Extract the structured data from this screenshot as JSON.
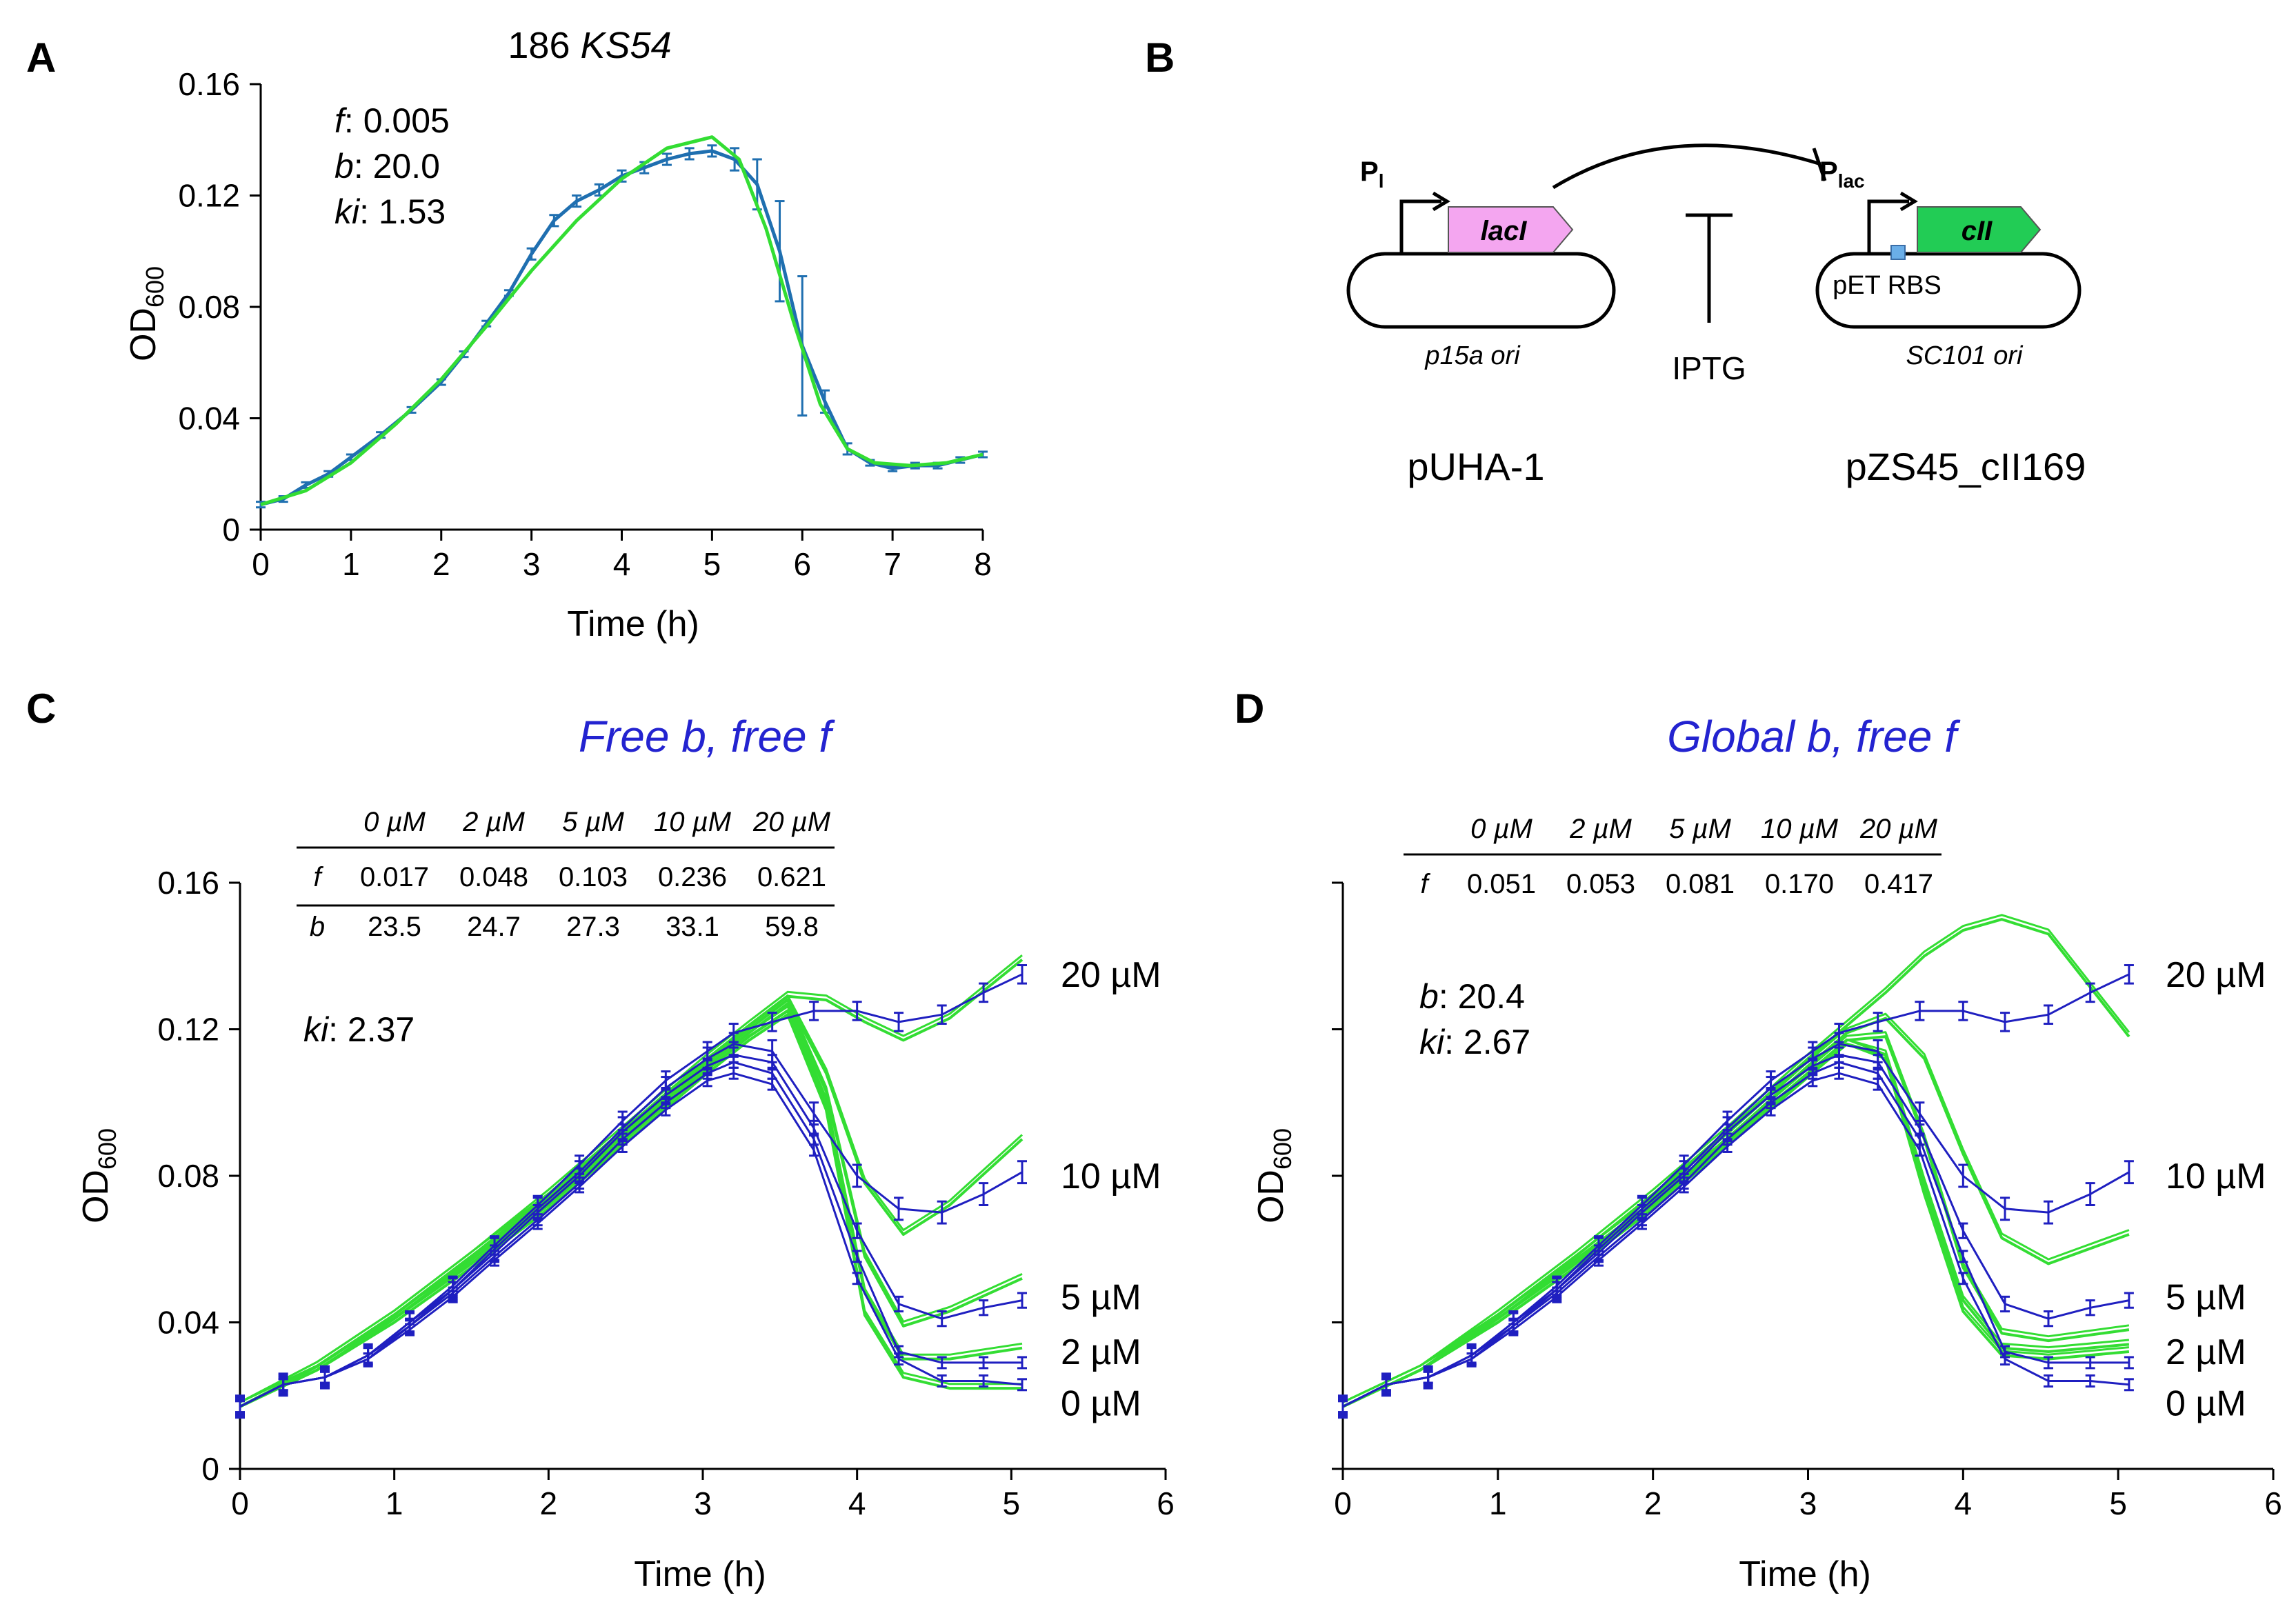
{
  "panels": {
    "A": "A",
    "B": "B",
    "C": "C",
    "D": "D"
  },
  "chart_data": [
    {
      "id": "A",
      "type": "line",
      "title_prefix": "186 ",
      "title_italic": "KS54",
      "xlabel": "Time (h)",
      "ylabel": "OD",
      "ylabel_sub": "600",
      "xlim": [
        0,
        8
      ],
      "ylim": [
        0,
        0.16
      ],
      "xticks": [
        0,
        1,
        2,
        3,
        4,
        5,
        6,
        7,
        8
      ],
      "yticks": [
        0,
        0.04,
        0.08,
        0.12,
        0.16
      ],
      "ytick_labels": [
        "0",
        "0.04",
        "0.08",
        "0.12",
        "0.16"
      ],
      "annotations": [
        {
          "key": "f",
          "sep": ": ",
          "value": "0.005"
        },
        {
          "key": "b",
          "sep": ": ",
          "value": "20.0"
        },
        {
          "key": "ki",
          "sep": ": ",
          "value": "1.53"
        }
      ],
      "series": [
        {
          "name": "data",
          "color": "#1f6fb0",
          "x": [
            0,
            0.25,
            0.5,
            0.75,
            1.0,
            1.33,
            1.67,
            2.0,
            2.25,
            2.5,
            2.75,
            3.0,
            3.25,
            3.5,
            3.75,
            4.0,
            4.25,
            4.5,
            4.75,
            5.0,
            5.25,
            5.5,
            5.75,
            6.0,
            6.25,
            6.5,
            6.75,
            7.0,
            7.25,
            7.5,
            7.75,
            8.0
          ],
          "y": [
            0.009,
            0.011,
            0.016,
            0.02,
            0.026,
            0.034,
            0.043,
            0.053,
            0.063,
            0.074,
            0.085,
            0.099,
            0.111,
            0.118,
            0.122,
            0.127,
            0.13,
            0.133,
            0.135,
            0.136,
            0.133,
            0.124,
            0.1,
            0.066,
            0.046,
            0.029,
            0.024,
            0.022,
            0.023,
            0.023,
            0.025,
            0.027
          ],
          "err": [
            0.001,
            0.001,
            0.001,
            0.001,
            0.001,
            0.001,
            0.001,
            0.001,
            0.001,
            0.001,
            0.001,
            0.002,
            0.002,
            0.002,
            0.002,
            0.002,
            0.002,
            0.002,
            0.002,
            0.002,
            0.004,
            0.009,
            0.018,
            0.025,
            0.004,
            0.002,
            0.001,
            0.001,
            0.001,
            0.001,
            0.001,
            0.001
          ]
        },
        {
          "name": "model",
          "color": "#33dd33",
          "x": [
            0,
            0.5,
            1,
            1.5,
            2,
            2.5,
            3,
            3.5,
            4,
            4.5,
            5,
            5.3,
            5.6,
            5.9,
            6.2,
            6.5,
            6.8,
            7.2,
            7.6,
            8
          ],
          "y": [
            0.009,
            0.014,
            0.024,
            0.038,
            0.054,
            0.073,
            0.093,
            0.111,
            0.126,
            0.137,
            0.141,
            0.133,
            0.108,
            0.075,
            0.045,
            0.029,
            0.024,
            0.023,
            0.024,
            0.027
          ]
        }
      ]
    },
    {
      "id": "C",
      "type": "line",
      "title": "Free b, free f",
      "title_color": "#2323d0",
      "xlabel": "Time (h)",
      "ylabel": "OD",
      "ylabel_sub": "600",
      "xlim": [
        0,
        6
      ],
      "ylim": [
        0,
        0.16
      ],
      "xticks": [
        0,
        1,
        2,
        3,
        4,
        5,
        6
      ],
      "yticks": [
        0,
        0.04,
        0.08,
        0.12,
        0.16
      ],
      "ytick_labels": [
        "0",
        "0.04",
        "0.08",
        "0.12",
        "0.16"
      ],
      "param_table": {
        "headers": [
          "0 µM",
          "2 µM",
          "5 µM",
          "10 µM",
          "20 µM"
        ],
        "rows": [
          {
            "label": "f",
            "values": [
              "0.017",
              "0.048",
              "0.103",
              "0.236",
              "0.621"
            ]
          },
          {
            "label": "b",
            "values": [
              "23.5",
              "24.7",
              "27.3",
              "33.1",
              "59.8"
            ]
          }
        ]
      },
      "annotations": [
        {
          "key": "ki",
          "sep": ": ",
          "value": "2.37"
        }
      ],
      "series_labels": [
        "20 µM",
        "10 µM",
        "5 µM",
        "2 µM",
        "0 µM"
      ],
      "x": [
        0,
        0.28,
        0.55,
        0.83,
        1.1,
        1.38,
        1.65,
        1.93,
        2.2,
        2.48,
        2.76,
        3.03,
        3.2,
        3.45,
        3.72,
        4.0,
        4.27,
        4.55,
        4.82,
        5.07
      ],
      "series": [
        {
          "name": "0 µM",
          "values": [
            0.017,
            0.023,
            0.025,
            0.03,
            0.038,
            0.047,
            0.057,
            0.067,
            0.077,
            0.088,
            0.098,
            0.106,
            0.108,
            0.105,
            0.087,
            0.052,
            0.03,
            0.024,
            0.024,
            0.023
          ],
          "err": 0.0015
        },
        {
          "name": "2 µM",
          "values": [
            0.017,
            0.023,
            0.025,
            0.03,
            0.039,
            0.048,
            0.058,
            0.068,
            0.078,
            0.09,
            0.1,
            0.108,
            0.111,
            0.108,
            0.09,
            0.058,
            0.032,
            0.029,
            0.029,
            0.029
          ],
          "err": 0.0015
        },
        {
          "name": "5 µM",
          "values": [
            0.017,
            0.023,
            0.025,
            0.031,
            0.039,
            0.049,
            0.059,
            0.07,
            0.08,
            0.092,
            0.102,
            0.11,
            0.113,
            0.111,
            0.093,
            0.065,
            0.045,
            0.041,
            0.044,
            0.046
          ],
          "err": 0.002
        },
        {
          "name": "10 µM",
          "values": [
            0.017,
            0.023,
            0.025,
            0.031,
            0.04,
            0.049,
            0.06,
            0.071,
            0.081,
            0.093,
            0.104,
            0.112,
            0.116,
            0.114,
            0.097,
            0.08,
            0.071,
            0.07,
            0.075,
            0.081
          ],
          "err": 0.003
        },
        {
          "name": "20 µM",
          "values": [
            0.017,
            0.023,
            0.025,
            0.031,
            0.04,
            0.05,
            0.061,
            0.072,
            0.083,
            0.095,
            0.106,
            0.114,
            0.119,
            0.122,
            0.125,
            0.125,
            0.122,
            0.124,
            0.13,
            0.135
          ],
          "err": 0.0025
        }
      ],
      "model_series": [
        {
          "name": "0 µM",
          "x": [
            0,
            0.5,
            1,
            1.5,
            2,
            2.5,
            3,
            3.3,
            3.55,
            3.8,
            4.05,
            4.3,
            4.6,
            5.07
          ],
          "values": [
            0.017,
            0.027,
            0.04,
            0.055,
            0.071,
            0.089,
            0.107,
            0.117,
            0.124,
            0.098,
            0.042,
            0.025,
            0.022,
            0.022
          ]
        },
        {
          "name": "2 µM",
          "x": [
            0,
            0.5,
            1,
            1.5,
            2,
            2.5,
            3,
            3.3,
            3.55,
            3.8,
            4.05,
            4.3,
            4.6,
            5.07
          ],
          "values": [
            0.017,
            0.027,
            0.041,
            0.056,
            0.072,
            0.09,
            0.108,
            0.118,
            0.125,
            0.1,
            0.048,
            0.03,
            0.03,
            0.033
          ]
        },
        {
          "name": "5 µM",
          "x": [
            0,
            0.5,
            1,
            1.5,
            2,
            2.5,
            3,
            3.3,
            3.55,
            3.8,
            4.05,
            4.3,
            4.6,
            5.07
          ],
          "values": [
            0.017,
            0.027,
            0.041,
            0.057,
            0.073,
            0.091,
            0.109,
            0.119,
            0.127,
            0.103,
            0.058,
            0.039,
            0.043,
            0.052
          ]
        },
        {
          "name": "10 µM",
          "x": [
            0,
            0.5,
            1,
            1.5,
            2,
            2.5,
            3,
            3.3,
            3.55,
            3.8,
            4.05,
            4.3,
            4.6,
            5.07
          ],
          "values": [
            0.017,
            0.028,
            0.042,
            0.058,
            0.074,
            0.092,
            0.11,
            0.12,
            0.128,
            0.108,
            0.078,
            0.064,
            0.072,
            0.09
          ]
        },
        {
          "name": "20 µM",
          "x": [
            0,
            0.5,
            1,
            1.5,
            2,
            2.5,
            3,
            3.3,
            3.55,
            3.8,
            4.05,
            4.3,
            4.6,
            5.07
          ],
          "values": [
            0.017,
            0.028,
            0.042,
            0.058,
            0.075,
            0.093,
            0.111,
            0.121,
            0.129,
            0.128,
            0.122,
            0.117,
            0.123,
            0.139
          ]
        }
      ]
    },
    {
      "id": "D",
      "type": "line",
      "title": "Global b, free f",
      "title_color": "#2323d0",
      "xlabel": "Time (h)",
      "ylabel": "OD",
      "ylabel_sub": "600",
      "xlim": [
        0,
        6
      ],
      "ylim": [
        0,
        0.16
      ],
      "xticks": [
        0,
        1,
        2,
        3,
        4,
        5,
        6
      ],
      "yticks": [
        0,
        0.04,
        0.08,
        0.12,
        0.16
      ],
      "param_table": {
        "headers": [
          "0 µM",
          "2 µM",
          "5 µM",
          "10 µM",
          "20 µM"
        ],
        "rows": [
          {
            "label": "f",
            "values": [
              "0.051",
              "0.053",
              "0.081",
              "0.170",
              "0.417"
            ]
          }
        ]
      },
      "annotations": [
        {
          "key": "b",
          "sep": ": ",
          "value": "20.4"
        },
        {
          "key": "ki",
          "sep": ": ",
          "value": "2.67"
        }
      ],
      "series_labels": [
        "20 µM",
        "10 µM",
        "5 µM",
        "2 µM",
        "0 µM"
      ],
      "x": [
        0,
        0.28,
        0.55,
        0.83,
        1.1,
        1.38,
        1.65,
        1.93,
        2.2,
        2.48,
        2.76,
        3.03,
        3.2,
        3.45,
        3.72,
        4.0,
        4.27,
        4.55,
        4.82,
        5.07
      ],
      "series": [
        {
          "name": "0 µM",
          "values": [
            0.017,
            0.023,
            0.025,
            0.03,
            0.038,
            0.047,
            0.057,
            0.067,
            0.077,
            0.088,
            0.098,
            0.106,
            0.108,
            0.105,
            0.087,
            0.052,
            0.03,
            0.024,
            0.024,
            0.023
          ],
          "err": 0.0015
        },
        {
          "name": "2 µM",
          "values": [
            0.017,
            0.023,
            0.025,
            0.03,
            0.039,
            0.048,
            0.058,
            0.068,
            0.078,
            0.09,
            0.1,
            0.108,
            0.111,
            0.108,
            0.09,
            0.058,
            0.032,
            0.029,
            0.029,
            0.029
          ],
          "err": 0.0015
        },
        {
          "name": "5 µM",
          "values": [
            0.017,
            0.023,
            0.025,
            0.031,
            0.039,
            0.049,
            0.059,
            0.07,
            0.08,
            0.092,
            0.102,
            0.11,
            0.113,
            0.111,
            0.093,
            0.065,
            0.045,
            0.041,
            0.044,
            0.046
          ],
          "err": 0.002
        },
        {
          "name": "10 µM",
          "values": [
            0.017,
            0.023,
            0.025,
            0.031,
            0.04,
            0.049,
            0.06,
            0.071,
            0.081,
            0.093,
            0.104,
            0.112,
            0.116,
            0.114,
            0.097,
            0.08,
            0.071,
            0.07,
            0.075,
            0.081
          ],
          "err": 0.003
        },
        {
          "name": "20 µM",
          "values": [
            0.017,
            0.023,
            0.025,
            0.031,
            0.04,
            0.05,
            0.061,
            0.072,
            0.083,
            0.095,
            0.106,
            0.114,
            0.119,
            0.122,
            0.125,
            0.125,
            0.122,
            0.124,
            0.13,
            0.135
          ],
          "err": 0.0025
        }
      ],
      "model_series": [
        {
          "name": "0 µM",
          "x": [
            0,
            0.5,
            1,
            1.5,
            2,
            2.5,
            3,
            3.25,
            3.5,
            3.75,
            4.0,
            4.25,
            4.55,
            5.07
          ],
          "values": [
            0.017,
            0.027,
            0.04,
            0.055,
            0.071,
            0.089,
            0.107,
            0.116,
            0.112,
            0.075,
            0.043,
            0.031,
            0.03,
            0.032
          ]
        },
        {
          "name": "2 µM",
          "x": [
            0,
            0.5,
            1,
            1.5,
            2,
            2.5,
            3,
            3.25,
            3.5,
            3.75,
            4.0,
            4.25,
            4.55,
            5.07
          ],
          "values": [
            0.017,
            0.027,
            0.04,
            0.055,
            0.071,
            0.089,
            0.107,
            0.116,
            0.113,
            0.078,
            0.046,
            0.033,
            0.032,
            0.034
          ]
        },
        {
          "name": "5 µM",
          "x": [
            0,
            0.5,
            1,
            1.5,
            2,
            2.5,
            3,
            3.25,
            3.5,
            3.75,
            4.0,
            4.25,
            4.55,
            5.07
          ],
          "values": [
            0.017,
            0.027,
            0.041,
            0.056,
            0.072,
            0.09,
            0.108,
            0.117,
            0.118,
            0.09,
            0.055,
            0.037,
            0.035,
            0.038
          ]
        },
        {
          "name": "10 µM",
          "x": [
            0,
            0.5,
            1,
            1.5,
            2,
            2.5,
            3,
            3.25,
            3.5,
            3.75,
            4.0,
            4.25,
            4.55,
            5.07
          ],
          "values": [
            0.017,
            0.027,
            0.041,
            0.057,
            0.073,
            0.091,
            0.11,
            0.119,
            0.123,
            0.112,
            0.086,
            0.063,
            0.056,
            0.064
          ]
        },
        {
          "name": "20 µM",
          "x": [
            0,
            0.5,
            1,
            1.5,
            2,
            2.5,
            3,
            3.25,
            3.5,
            3.75,
            4.0,
            4.25,
            4.55,
            5.07
          ],
          "values": [
            0.017,
            0.027,
            0.042,
            0.058,
            0.075,
            0.093,
            0.112,
            0.121,
            0.13,
            0.14,
            0.147,
            0.15,
            0.146,
            0.118
          ]
        }
      ]
    }
  ],
  "diagram": {
    "promoter_left": {
      "main": "P",
      "sub": "l"
    },
    "promoter_right": {
      "main": "P",
      "sub": "lac"
    },
    "gene_left": "lacI",
    "gene_right": "cII",
    "inducer": "IPTG",
    "left_ori": "p15a ori",
    "right_ori": "SC101 ori",
    "right_insert": "pET RBS",
    "left_plasmid": "pUHA-1",
    "right_plasmid": "pZS45_cII169",
    "gene_left_color": "#f4a6f0",
    "gene_right_color": "#22cc55",
    "rbs_color": "#6aaee8"
  }
}
